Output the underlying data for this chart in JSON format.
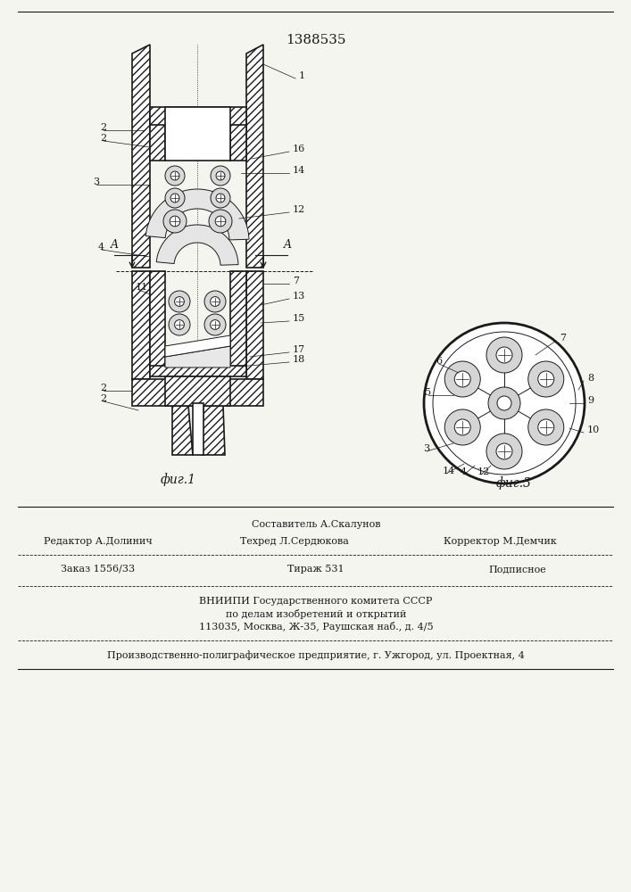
{
  "patent_number": "1388535",
  "fig1_label": "фиг.1",
  "fig3_label": "фиг.3",
  "editor_line": "Редактор А.Долинич",
  "composer_line": "Составитель А.Скалунов",
  "techred_line": "Техред Л.Сердюкова",
  "corrector_line": "Корректор М.Демчик",
  "order_line": "Заказ 1556/33",
  "tiraz_line": "Тираж 531",
  "podpisnoe_line": "Подписное",
  "org_line1": "ВНИИПИ Государственного комитета СССР",
  "org_line2": "по делам изобретений и открытий",
  "org_line3": "113035, Москва, Ж-35, Раушская наб., д. 4/5",
  "prod_line": "Производственно-полиграфическое предприятие, г. Ужгород, ул. Проектная, 4",
  "bg_color": "#f5f5f0",
  "line_color": "#1a1a1a",
  "hatch_color": "#1a1a1a"
}
